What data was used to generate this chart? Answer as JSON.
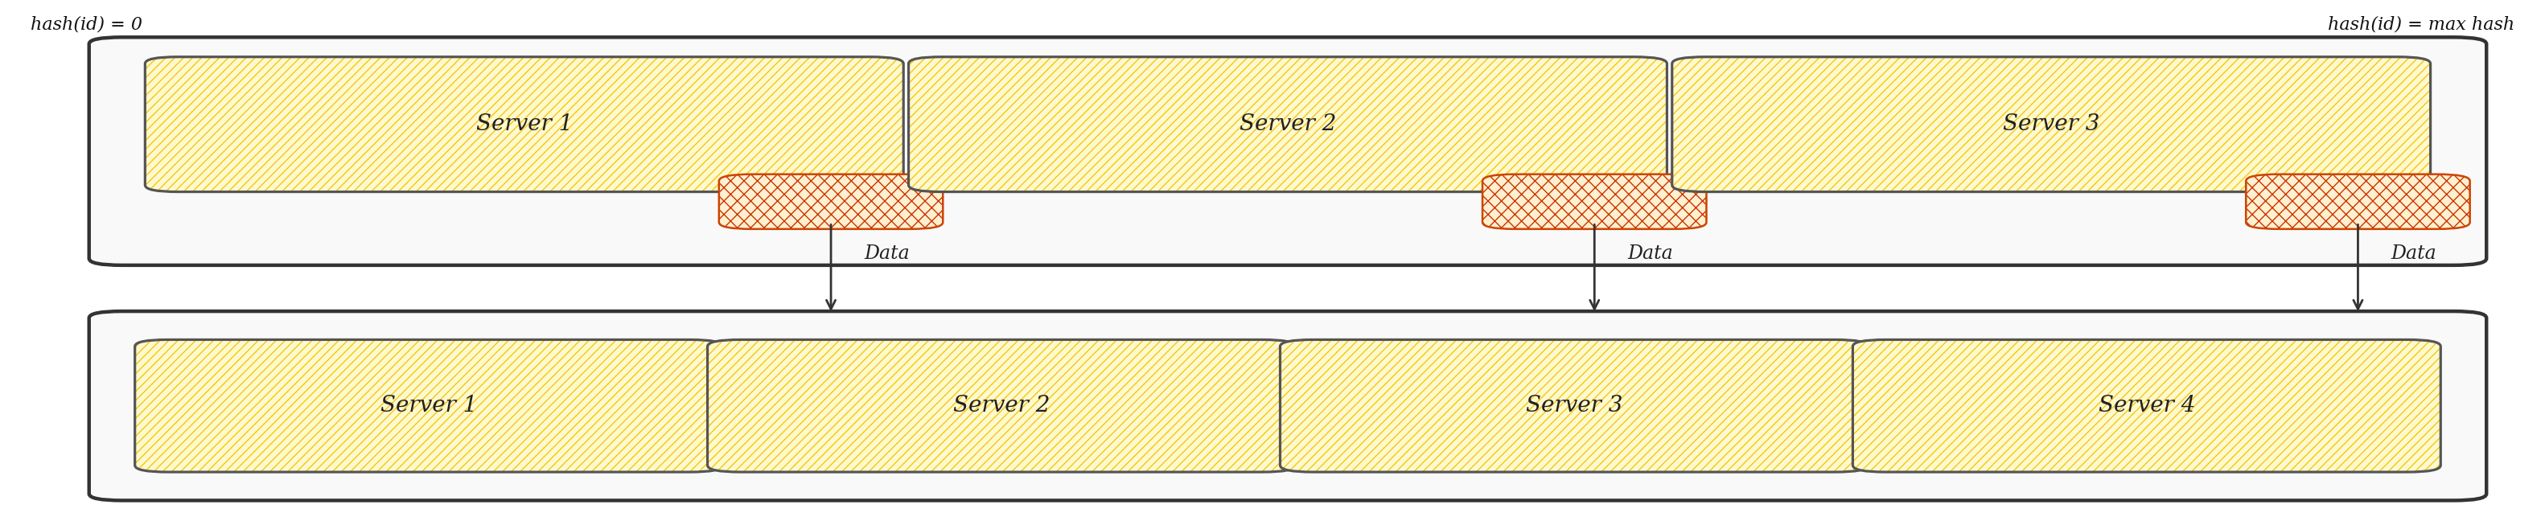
{
  "bg_color": "#ffffff",
  "hash_left": "hash(id) = 0",
  "hash_right": "hash(id) = max hash",
  "top_servers": [
    "Server 1",
    "Server 2",
    "Server 3"
  ],
  "bottom_servers": [
    "Server 1",
    "Server 2",
    "Server 3",
    "Server 4"
  ],
  "arrow_label": "Data",
  "server_fill_color": "#fffacd",
  "server_hatch_color": "#f5c518",
  "small_box_fill": "#fff0d0",
  "small_box_hatch_color": "#cc3300",
  "outer_fill": "#f9f9f9",
  "outer_edge": "#333333",
  "server_edge": "#555555",
  "font_size_server": 20,
  "font_size_label": 17,
  "font_size_hash": 16
}
